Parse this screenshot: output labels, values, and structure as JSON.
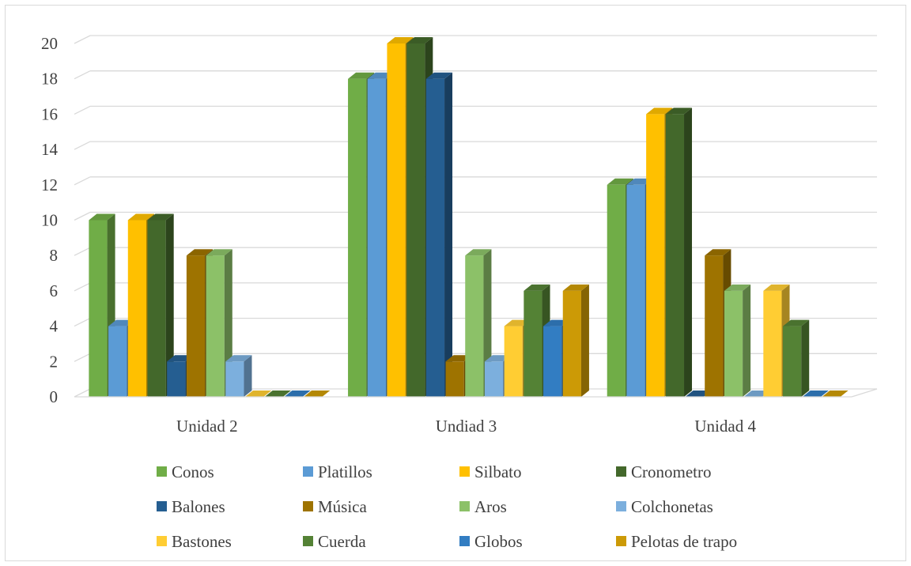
{
  "chart_data": {
    "type": "bar",
    "title": "",
    "xlabel": "",
    "ylabel": "",
    "ylim": [
      0,
      20
    ],
    "yticks": [
      0,
      2,
      4,
      6,
      8,
      10,
      12,
      14,
      16,
      18,
      20
    ],
    "grid": true,
    "legend_position": "bottom",
    "categories": [
      "Unidad 2",
      "Undiad 3",
      "Unidad 4"
    ],
    "series": [
      {
        "name": "Conos",
        "color": "#70ad47",
        "values": [
          10,
          18,
          12
        ]
      },
      {
        "name": "Platillos",
        "color": "#5b9bd5",
        "values": [
          4,
          18,
          12
        ]
      },
      {
        "name": "Silbato",
        "color": "#ffc000",
        "values": [
          10,
          20,
          16
        ]
      },
      {
        "name": "Cronometro",
        "color": "#43682b",
        "values": [
          10,
          20,
          16
        ]
      },
      {
        "name": "Balones",
        "color": "#255e91",
        "values": [
          2,
          18,
          0
        ]
      },
      {
        "name": "Música",
        "color": "#9e7300",
        "values": [
          8,
          2,
          8
        ]
      },
      {
        "name": "Aros",
        "color": "#8cc168",
        "values": [
          8,
          8,
          6
        ]
      },
      {
        "name": "Colchonetas",
        "color": "#7cafdd",
        "values": [
          2,
          2,
          0
        ]
      },
      {
        "name": "Bastones",
        "color": "#ffcd33",
        "values": [
          0,
          4,
          6
        ]
      },
      {
        "name": "Cuerda",
        "color": "#548235",
        "values": [
          0,
          6,
          4
        ]
      },
      {
        "name": "Globos",
        "color": "#327dc2",
        "values": [
          0,
          4,
          0
        ]
      },
      {
        "name": "Pelotas de trapo",
        "color": "#cc9a06",
        "values": [
          0,
          6,
          0
        ]
      }
    ]
  }
}
